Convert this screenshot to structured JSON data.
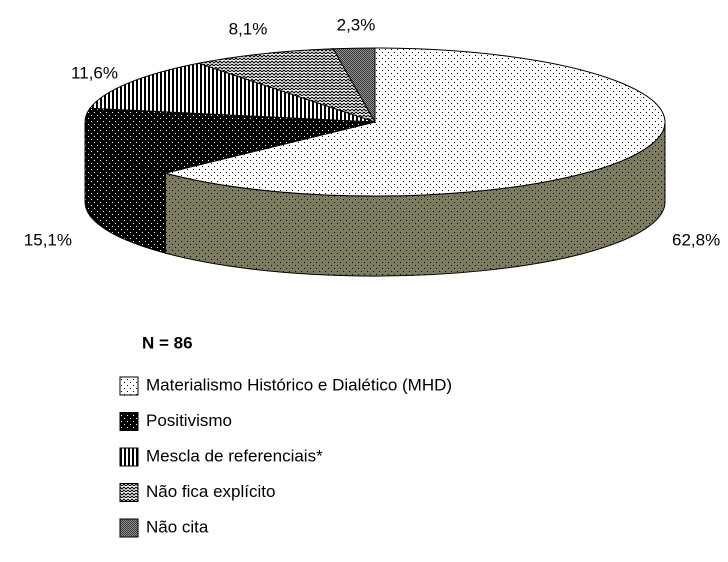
{
  "chart_data": {
    "type": "pie3d",
    "annotation": "N = 86",
    "categories": [
      "Materialismo Histórico e Dialético (MHD)",
      "Positivismo",
      "Mescla de referenciais*",
      "Não fica explícito",
      "Não cita"
    ],
    "values": [
      62.8,
      15.1,
      11.6,
      8.1,
      2.3
    ],
    "value_labels": [
      "62,8%",
      "15,1%",
      "11,6%",
      "8,1%",
      "2,3%"
    ],
    "colors": [
      "#ffffff",
      "#000000",
      "#ffffff",
      "#ffffff",
      "#909090"
    ],
    "side_colors": [
      "#7c7c5c",
      "#000000",
      "#ffffff",
      "#ffffff",
      "#909090"
    ]
  }
}
